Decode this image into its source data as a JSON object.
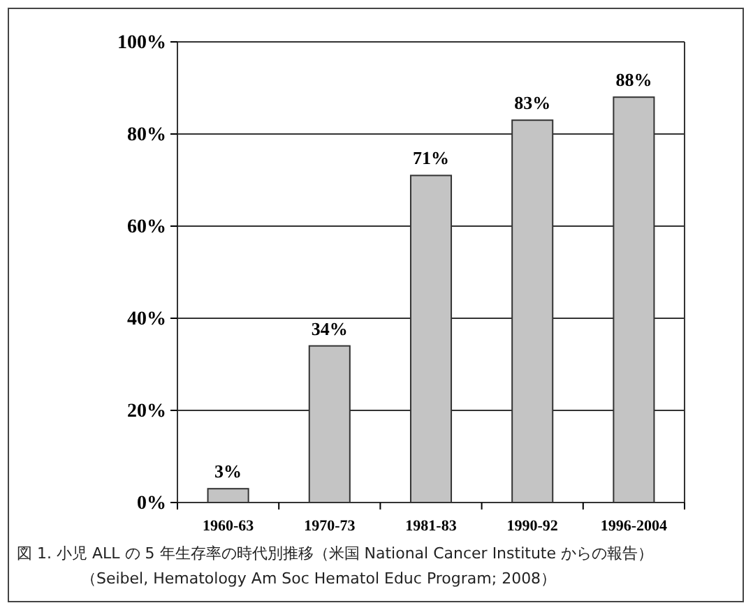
{
  "chart_data": {
    "type": "bar",
    "categories": [
      "1960-63",
      "1970-73",
      "1981-83",
      "1990-92",
      "1996-2004"
    ],
    "values": [
      3,
      34,
      71,
      83,
      88
    ],
    "value_labels": [
      "3%",
      "34%",
      "71%",
      "83%",
      "88%"
    ],
    "color": "#c4c4c4",
    "ylim": [
      0,
      100
    ],
    "yticks": [
      {
        "value": 0,
        "label": "0%"
      },
      {
        "value": 20,
        "label": "20%"
      },
      {
        "value": 40,
        "label": "40%"
      },
      {
        "value": 60,
        "label": "60%"
      },
      {
        "value": 80,
        "label": "80%"
      },
      {
        "value": 100,
        "label": "100%"
      }
    ],
    "grid": "y",
    "annotations": [
      "図 1.  小児 ALL の 5 年生存率の時代別推移（米国 National Cancer Institute からの報告）",
      "（Seibel, Hematology Am Soc Hematol Educ Program; 2008）"
    ]
  }
}
